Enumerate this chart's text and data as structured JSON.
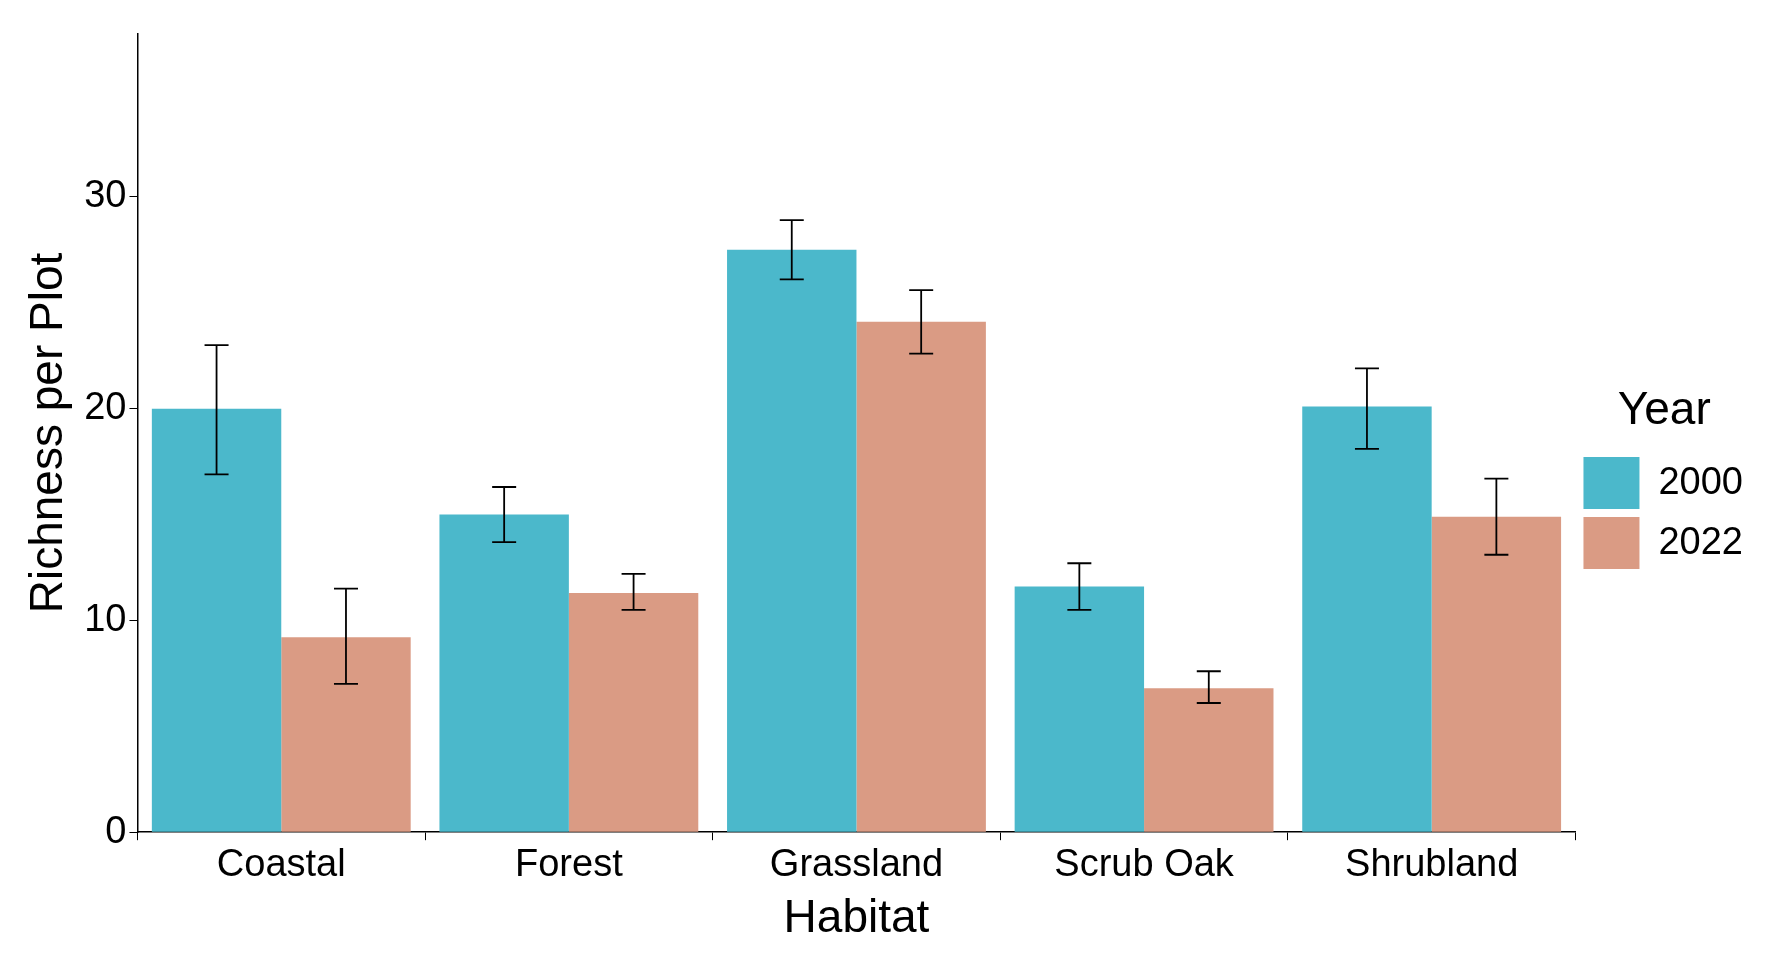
{
  "chart_data": {
    "type": "bar",
    "xlabel": "Habitat",
    "ylabel": "Richness per Plot",
    "legend_title": "Year",
    "categories": [
      "Coastal",
      "Forest",
      "Grassland",
      "Scrub Oak",
      "Shrubland"
    ],
    "series": [
      {
        "name": "2000",
        "color": "#4bb8cb",
        "values": [
          20.0,
          15.0,
          27.5,
          11.6,
          20.1
        ],
        "errors": [
          [
            16.9,
            23.0
          ],
          [
            13.7,
            16.3
          ],
          [
            26.1,
            28.9
          ],
          [
            10.5,
            12.7
          ],
          [
            18.1,
            21.9
          ]
        ]
      },
      {
        "name": "2022",
        "color": "#da9b84",
        "values": [
          9.2,
          11.3,
          24.1,
          6.8,
          14.9
        ],
        "errors": [
          [
            7.0,
            11.5
          ],
          [
            10.5,
            12.2
          ],
          [
            22.6,
            25.6
          ],
          [
            6.1,
            7.6
          ],
          [
            13.1,
            16.7
          ]
        ]
      }
    ],
    "ylim": [
      0,
      37.7
    ],
    "yticks": [
      0,
      10,
      20,
      30
    ],
    "grid": false,
    "legend": "right"
  }
}
